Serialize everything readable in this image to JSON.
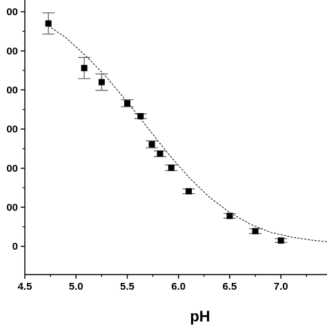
{
  "chart_data": {
    "type": "scatter",
    "xlabel": "pH",
    "ylabel": "",
    "xlim": [
      4.5,
      7.45
    ],
    "ylim": [
      -0.12,
      1.05
    ],
    "x_ticks": [
      4.5,
      5.0,
      5.5,
      6.0,
      6.5,
      7.0
    ],
    "x_tick_labels": [
      "4.5",
      "5.0",
      "5.5",
      "6.0",
      "6.5",
      "7.0"
    ],
    "y_ticks": [
      0,
      0.167,
      0.333,
      0.5,
      0.667,
      0.833,
      1.0
    ],
    "y_tick_labels": [
      "0",
      "00",
      "00",
      "00",
      "00",
      "00",
      "00"
    ],
    "grid": false,
    "series": [
      {
        "marker": "square",
        "color": "#000000",
        "x": [
          4.73,
          5.08,
          5.25,
          5.5,
          5.63,
          5.74,
          5.82,
          5.93,
          6.1,
          6.5,
          6.75,
          7.0
        ],
        "y": [
          0.95,
          0.76,
          0.7,
          0.61,
          0.555,
          0.435,
          0.395,
          0.335,
          0.235,
          0.13,
          0.065,
          0.025
        ],
        "err": [
          0.045,
          0.045,
          0.035,
          0.015,
          0.01,
          0.015,
          0.012,
          0.012,
          0.01,
          0.01,
          0.01,
          0.008
        ],
        "err_color": "#555555"
      }
    ],
    "fit_curve": {
      "style": "dashed",
      "color": "#000000",
      "x": [
        4.73,
        4.9,
        5.1,
        5.3,
        5.5,
        5.7,
        5.9,
        6.1,
        6.3,
        6.5,
        6.7,
        6.9,
        7.1,
        7.3,
        7.45
      ],
      "y": [
        0.94,
        0.89,
        0.81,
        0.72,
        0.615,
        0.505,
        0.395,
        0.295,
        0.21,
        0.145,
        0.095,
        0.06,
        0.04,
        0.027,
        0.02
      ]
    }
  }
}
